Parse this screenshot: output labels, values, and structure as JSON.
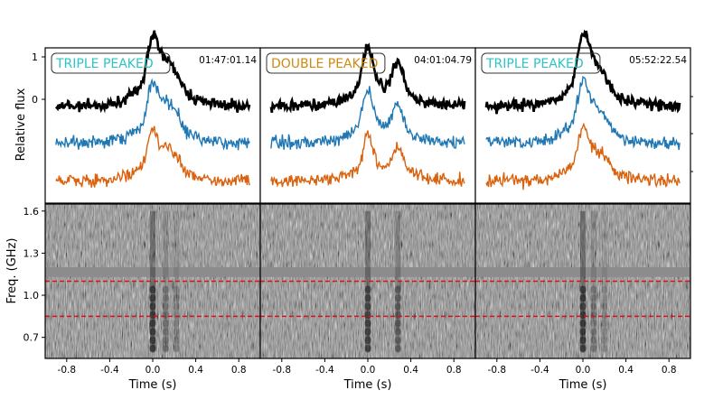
{
  "chart_data": {
    "type": "line",
    "top_ylabel": "Relative flux",
    "top_yticks": [
      "1",
      "0"
    ],
    "bottom_ylabel": "Freq. (GHz)",
    "bottom_yticks": [
      "1.6",
      "1.3",
      "1.0",
      "0.7"
    ],
    "bottom_ylim": [
      0.55,
      1.65
    ],
    "guide_lines": [
      1.1,
      0.85
    ],
    "guide_color": "#dd1111",
    "xlim": [
      -1.0,
      1.0
    ],
    "xticks": [
      "-0.8",
      "-0.4",
      "0.0",
      "0.4",
      "0.8"
    ],
    "xlabel": "Time (s)",
    "series_colors": [
      "#000000",
      "#1f77b4",
      "#d9620f"
    ],
    "panels": [
      {
        "label": "TRIPLE PEAKED",
        "label_color": "#2ec4c4",
        "timestamp": "01:47:01.14",
        "peaks": [
          {
            "t": 0.0,
            "amp": 1.0
          },
          {
            "t": 0.12,
            "amp": 0.45
          },
          {
            "t": 0.22,
            "amp": 0.3
          }
        ]
      },
      {
        "label": "DOUBLE PEAKED",
        "label_color": "#d08a10",
        "timestamp": "04:01:04.79",
        "peaks": [
          {
            "t": 0.0,
            "amp": 0.9
          },
          {
            "t": 0.28,
            "amp": 0.65
          }
        ]
      },
      {
        "label": "TRIPLE PEAKED",
        "label_color": "#2ec4c4",
        "timestamp": "05:52:22.54",
        "peaks": [
          {
            "t": 0.0,
            "amp": 1.0
          },
          {
            "t": 0.1,
            "amp": 0.4
          },
          {
            "t": 0.2,
            "amp": 0.25
          }
        ]
      }
    ]
  }
}
